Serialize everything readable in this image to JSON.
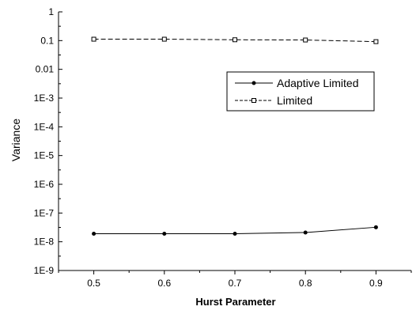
{
  "chart_data": {
    "type": "line",
    "xlabel": "Hurst Parameter",
    "ylabel": "Variance",
    "x": [
      0.5,
      0.6,
      0.7,
      0.8,
      0.9
    ],
    "xlim": [
      0.45,
      0.95
    ],
    "ylim": [
      1e-09,
      1
    ],
    "yscale": "log",
    "x_ticks": [
      "0.5",
      "0.6",
      "0.7",
      "0.8",
      "0.9"
    ],
    "y_ticks": [
      "1E-9",
      "1E-8",
      "1E-7",
      "1E-6",
      "1E-5",
      "1E-4",
      "1E-3",
      "0.01",
      "0.1",
      "1"
    ],
    "grid": false,
    "legend_position": "center-right",
    "series": [
      {
        "name": "Adaptive Limited",
        "values": [
          1.9e-08,
          1.9e-08,
          1.9e-08,
          2.1e-08,
          3.2e-08
        ],
        "line_style": "solid",
        "marker": "filled-circle",
        "color": "#000000"
      },
      {
        "name": "Limited",
        "values": [
          0.112,
          0.112,
          0.107,
          0.105,
          0.092
        ],
        "line_style": "dashed",
        "marker": "open-square",
        "color": "#000000"
      }
    ]
  }
}
